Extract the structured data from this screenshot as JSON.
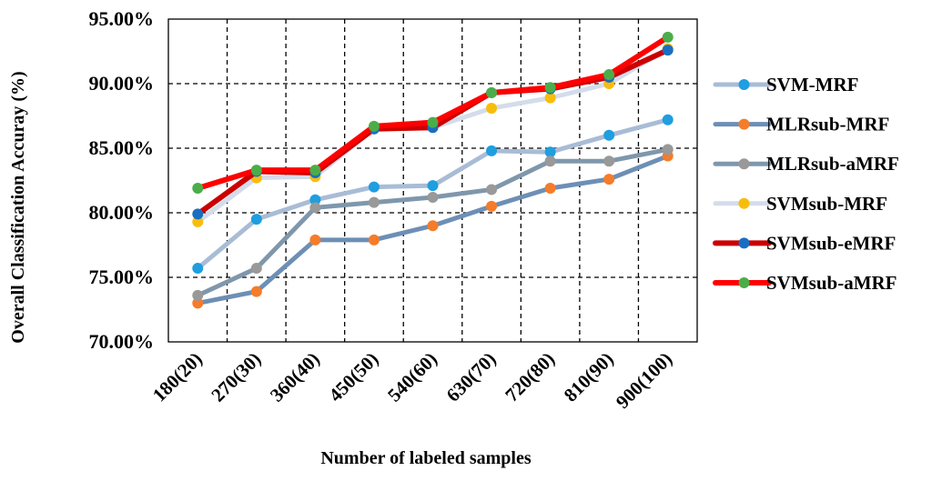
{
  "chart_data": {
    "type": "line",
    "title": "",
    "xlabel": "Number  of labeled  samples",
    "ylabel": "Overall  Classification  Accuray  (%)",
    "categories": [
      "180(20)",
      "270(30)",
      "360(40)",
      "450(50)",
      "540(60)",
      "630(70)",
      "720(80)",
      "810(90)",
      "900(100)"
    ],
    "ylim": [
      70,
      95
    ],
    "yticks": [
      70,
      75,
      80,
      85,
      90,
      95
    ],
    "ytick_labels": [
      "70.00%",
      "75.00%",
      "80.00%",
      "85.00%",
      "90.00%",
      "95.00%"
    ],
    "grid": true,
    "legend_position": "right",
    "series": [
      {
        "name": "SVM-MRF",
        "values": [
          75.7,
          79.5,
          81.0,
          82.0,
          82.1,
          84.8,
          84.7,
          86.0,
          87.2
        ],
        "line_color": "#a9bcd6",
        "marker_color": "#1f9ee0"
      },
      {
        "name": "MLRsub-MRF",
        "values": [
          73.0,
          73.9,
          77.9,
          77.9,
          79.0,
          80.5,
          81.9,
          82.6,
          84.4
        ],
        "line_color": "#6d8fb5",
        "marker_color": "#f57c2a"
      },
      {
        "name": "MLRsub-aMRF",
        "values": [
          73.6,
          75.7,
          80.4,
          80.8,
          81.2,
          81.8,
          84.0,
          84.0,
          84.9
        ],
        "line_color": "#7f97ac",
        "marker_color": "#999999"
      },
      {
        "name": "SVMsub-MRF",
        "values": [
          79.3,
          82.7,
          82.8,
          86.5,
          86.6,
          88.1,
          88.9,
          90.0,
          92.7
        ],
        "line_color": "#d4dceb",
        "marker_color": "#f8bd0c"
      },
      {
        "name": "SVMsub-eMRF",
        "values": [
          79.9,
          83.2,
          83.1,
          86.5,
          86.6,
          89.3,
          89.6,
          90.5,
          92.6
        ],
        "line_color": "#cc0000",
        "marker_color": "#1a6ec2"
      },
      {
        "name": "SVMsub-aMRF",
        "values": [
          81.9,
          83.3,
          83.3,
          86.7,
          87.0,
          89.3,
          89.7,
          90.7,
          93.6
        ],
        "line_color": "#ff0000",
        "marker_color": "#4aad4a"
      }
    ]
  }
}
